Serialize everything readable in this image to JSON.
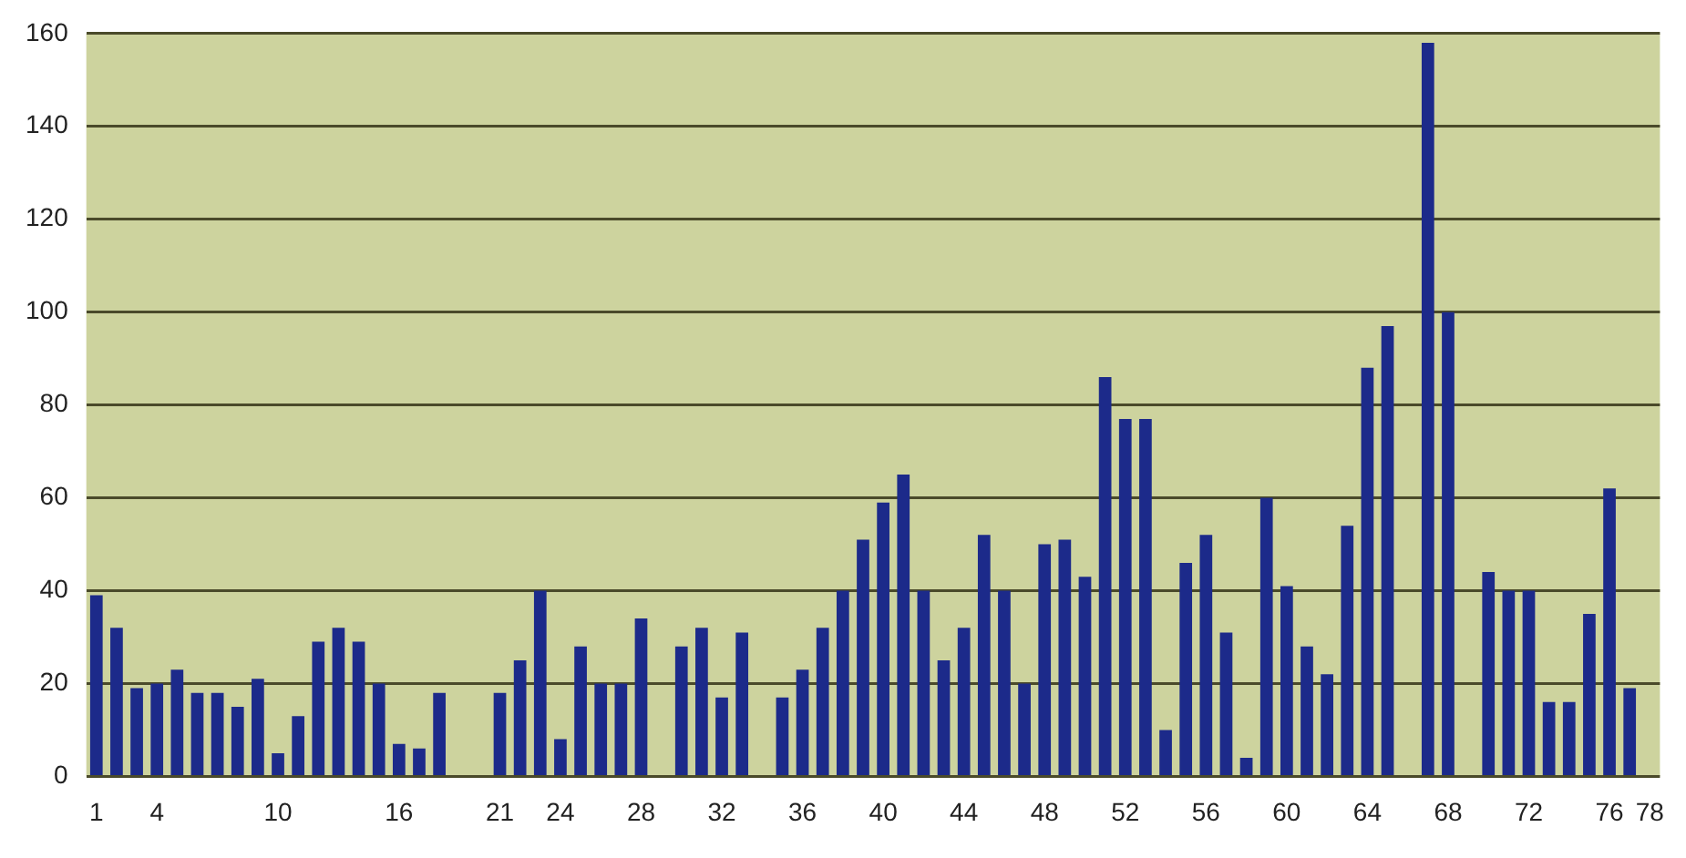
{
  "chart_data": {
    "type": "bar",
    "categories": [
      "1",
      null,
      null,
      "4",
      null,
      null,
      null,
      null,
      null,
      "10",
      null,
      null,
      null,
      null,
      null,
      "16",
      null,
      null,
      null,
      null,
      "21",
      null,
      null,
      "24",
      null,
      null,
      null,
      "28",
      null,
      null,
      null,
      "32",
      null,
      null,
      null,
      "36",
      null,
      null,
      null,
      "40",
      null,
      null,
      null,
      "44",
      null,
      null,
      null,
      "48",
      null,
      null,
      null,
      "52",
      null,
      null,
      null,
      "56",
      null,
      null,
      null,
      "60",
      null,
      null,
      null,
      "64",
      null,
      null,
      null,
      "68",
      null,
      null,
      null,
      "72",
      null,
      null,
      null,
      "76",
      null,
      "78"
    ],
    "values": [
      39,
      32,
      19,
      20,
      23,
      18,
      18,
      15,
      21,
      5,
      13,
      29,
      32,
      29,
      20,
      7,
      6,
      18,
      null,
      null,
      18,
      25,
      40,
      8,
      28,
      20,
      20,
      34,
      null,
      28,
      32,
      17,
      31,
      null,
      17,
      23,
      32,
      40,
      51,
      59,
      65,
      40,
      25,
      32,
      52,
      40,
      20,
      50,
      51,
      43,
      86,
      77,
      77,
      10,
      46,
      52,
      31,
      4,
      60,
      41,
      28,
      22,
      54,
      88,
      97,
      null,
      158,
      100,
      null,
      44,
      40,
      40,
      16,
      16,
      35,
      62,
      19,
      null
    ],
    "color": "#1c2a8a",
    "ylim": [
      0,
      160
    ],
    "yticks": [
      0,
      20,
      40,
      60,
      80,
      100,
      120,
      140,
      160
    ],
    "grid": "y"
  }
}
